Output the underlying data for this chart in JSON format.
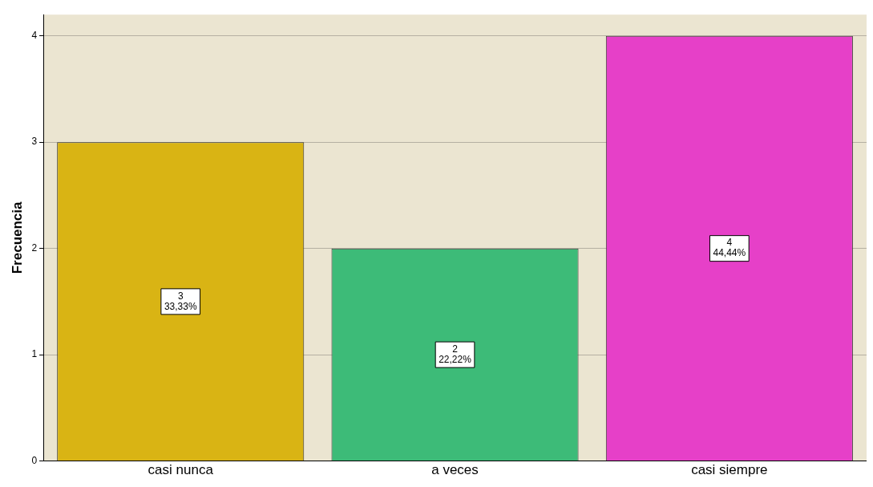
{
  "chart_data": {
    "type": "bar",
    "ylabel": "Frecuencia",
    "categories": [
      "casi nunca",
      "a veces",
      "casi siempre"
    ],
    "values": [
      3,
      2,
      4
    ],
    "colors": [
      "#d9b414",
      "#3dbb78",
      "#e640c8"
    ],
    "value_labels": [
      "3\n33,33%",
      "2\n22,22%",
      "4\n44,44%"
    ],
    "ylim": [
      0,
      4.2
    ],
    "yticks": [
      0,
      1,
      2,
      3,
      4
    ],
    "grid": "y",
    "legend": false
  }
}
